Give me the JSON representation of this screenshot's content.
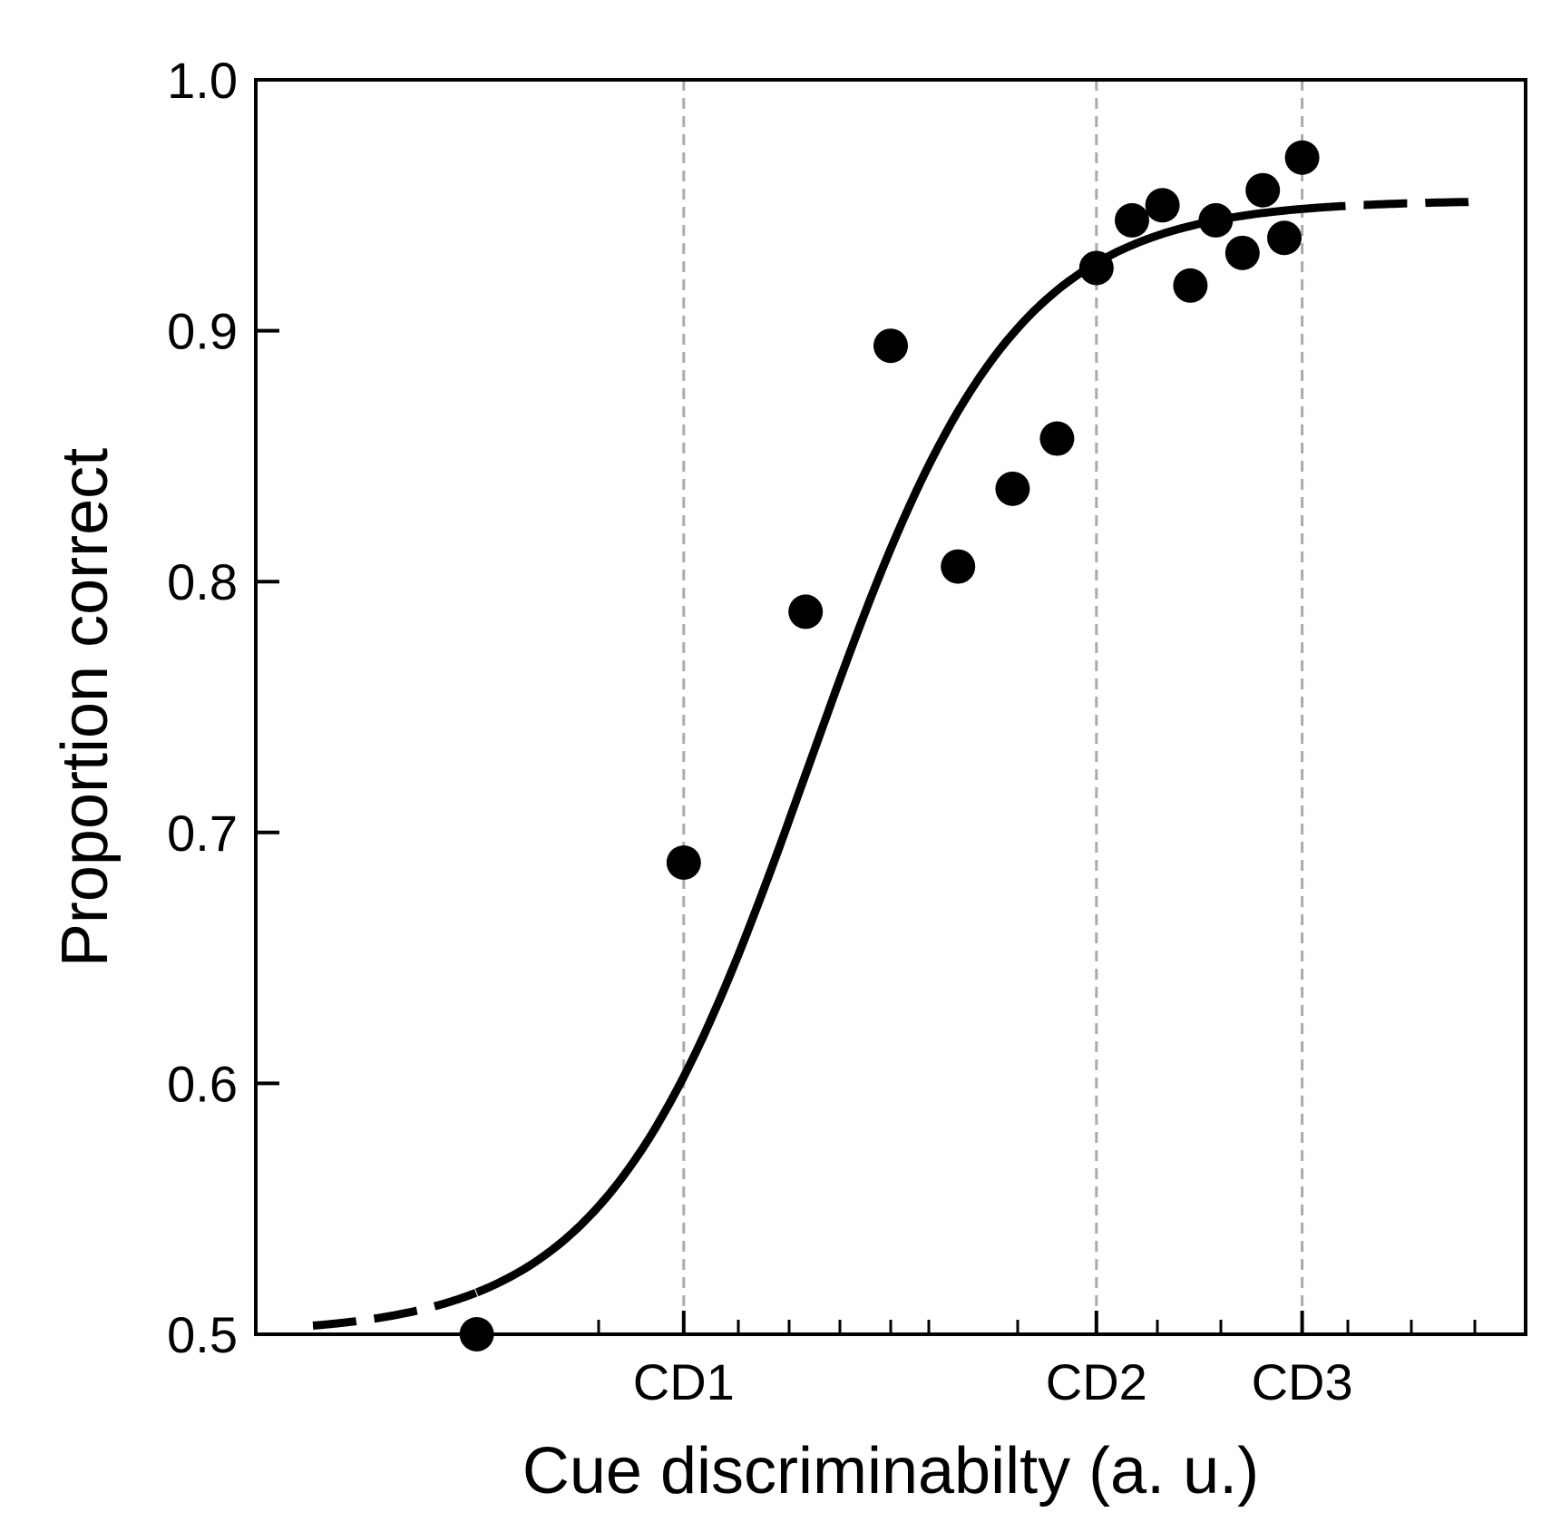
{
  "chart_data": {
    "type": "scatter",
    "title": "",
    "xlabel": "Cue discriminabilty (a. u.)",
    "ylabel": "Proportion correct",
    "xlim": [
      0,
      10
    ],
    "ylim": [
      0.5,
      1.0
    ],
    "yticks": [
      {
        "value": 0.5,
        "label": "0.5"
      },
      {
        "value": 0.6,
        "label": "0.6"
      },
      {
        "value": 0.7,
        "label": "0.7"
      },
      {
        "value": 0.8,
        "label": "0.8"
      },
      {
        "value": 0.9,
        "label": "0.9"
      },
      {
        "value": 1.0,
        "label": "1.0"
      }
    ],
    "xticks_major": [
      {
        "value": 3.37,
        "label": "CD1"
      },
      {
        "value": 6.62,
        "label": "CD2"
      },
      {
        "value": 8.24,
        "label": "CD3"
      }
    ],
    "xticks_minor": [
      2.7,
      3.37,
      3.8,
      4.2,
      4.6,
      5.0,
      5.3,
      6.0,
      6.62,
      7.1,
      7.6,
      8.24,
      8.6,
      9.1,
      9.6
    ],
    "reference_lines": [
      3.37,
      6.62,
      8.24
    ],
    "grid": false,
    "series": [
      {
        "name": "data",
        "kind": "scatter",
        "points": [
          {
            "x": 1.74,
            "y": 0.5
          },
          {
            "x": 3.37,
            "y": 0.688
          },
          {
            "x": 4.33,
            "y": 0.788
          },
          {
            "x": 5.0,
            "y": 0.894
          },
          {
            "x": 5.53,
            "y": 0.806
          },
          {
            "x": 5.96,
            "y": 0.837
          },
          {
            "x": 6.31,
            "y": 0.857
          },
          {
            "x": 6.62,
            "y": 0.925
          },
          {
            "x": 6.9,
            "y": 0.944
          },
          {
            "x": 7.14,
            "y": 0.95
          },
          {
            "x": 7.36,
            "y": 0.918
          },
          {
            "x": 7.56,
            "y": 0.944
          },
          {
            "x": 7.77,
            "y": 0.931
          },
          {
            "x": 7.93,
            "y": 0.956
          },
          {
            "x": 8.1,
            "y": 0.937
          },
          {
            "x": 8.24,
            "y": 0.969
          }
        ]
      },
      {
        "name": "psychometric fit",
        "kind": "curve",
        "style": "solid within data range, dashed extrapolation",
        "model": "logistic",
        "params": {
          "lower": 0.5,
          "upper": 0.952,
          "midpoint": 4.35,
          "slope": 1.25
        },
        "x_start": 0.45,
        "x_end": 9.55,
        "solid_range": [
          1.74,
          8.24
        ]
      }
    ]
  }
}
